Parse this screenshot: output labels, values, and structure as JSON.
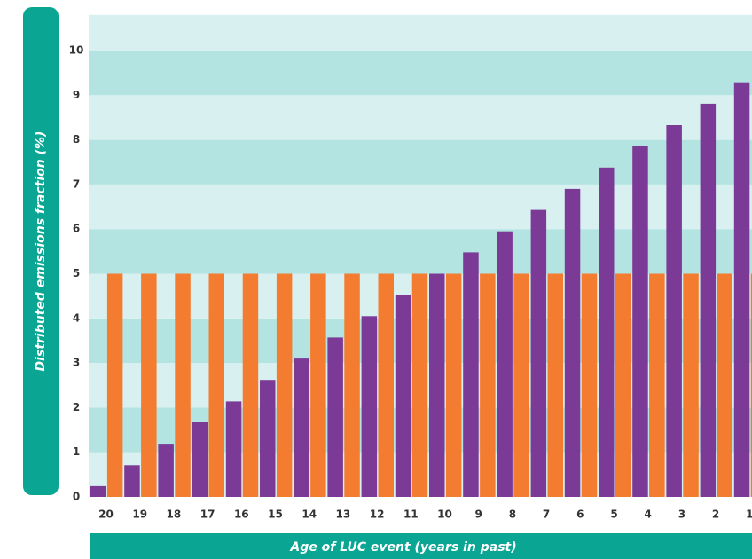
{
  "chart_data": {
    "type": "bar",
    "title": "",
    "xlabel": "Age of LUC event (years in past)",
    "ylabel": "Distributed emissions fraction (%)",
    "ylim": [
      0,
      10.8
    ],
    "yticks": [
      0,
      1,
      2,
      3,
      4,
      5,
      6,
      7,
      8,
      9,
      10
    ],
    "categories": [
      "20",
      "19",
      "18",
      "17",
      "16",
      "15",
      "14",
      "13",
      "12",
      "11",
      "10",
      "9",
      "8",
      "7",
      "6",
      "5",
      "4",
      "3",
      "2",
      "1"
    ],
    "series": [
      {
        "color": "#7b3a96",
        "values": [
          0.24,
          0.71,
          1.19,
          1.67,
          2.14,
          2.62,
          3.1,
          3.57,
          4.05,
          4.52,
          5.0,
          5.48,
          5.95,
          6.43,
          6.9,
          7.38,
          7.86,
          8.33,
          8.81,
          9.29
        ]
      },
      {
        "color": "#f47c30",
        "values": [
          5,
          5,
          5,
          5,
          5,
          5,
          5,
          5,
          5,
          5,
          5,
          5,
          5,
          5,
          5,
          5,
          5,
          5,
          5,
          5
        ]
      }
    ],
    "grid": true,
    "legend": "none",
    "band_colors": [
      "#d8f1f0",
      "#b3e4e2"
    ]
  }
}
